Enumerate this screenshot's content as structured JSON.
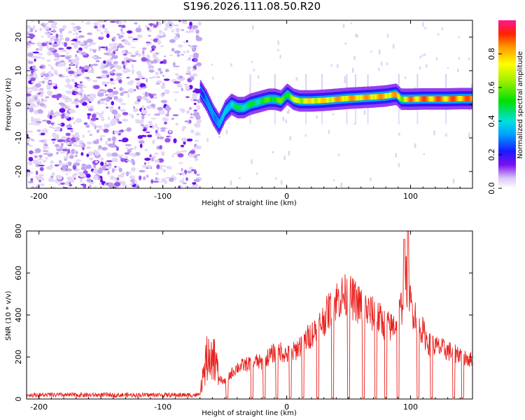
{
  "title": "S196.2026.111.08.50.R20",
  "chart_data": [
    {
      "type": "heatmap",
      "xlabel": "Height of straight line (km)",
      "ylabel": "Frequency (Hz)",
      "xlim": [
        -210,
        150
      ],
      "ylim": [
        -25,
        25
      ],
      "xticks": [
        -200,
        -100,
        0,
        100
      ],
      "yticks": [
        -20,
        -10,
        0,
        10,
        20
      ],
      "colorbar": {
        "label": "Normalized spectral amplitude",
        "range": [
          0,
          1
        ],
        "ticks": [
          "0.0",
          "0.2",
          "0.4",
          "0.6",
          "0.8"
        ],
        "tick_values": [
          0.0,
          0.2,
          0.4,
          0.6,
          0.8
        ]
      },
      "ridge": {
        "x": [
          -70,
          -65,
          -60,
          -55,
          -50,
          -45,
          -40,
          -35,
          -30,
          -25,
          -20,
          -15,
          -10,
          -5,
          0,
          5,
          10,
          20,
          30,
          40,
          50,
          60,
          70,
          80,
          88,
          92,
          100,
          110,
          120,
          130,
          140,
          150
        ],
        "freq": [
          4,
          1,
          -3,
          -6,
          -2,
          0,
          -1,
          -1,
          0,
          0.5,
          1,
          1.5,
          1.5,
          1,
          3,
          1.5,
          1,
          1,
          1.2,
          1.5,
          1.8,
          2,
          2.2,
          2.5,
          3,
          1.5,
          1.5,
          1.6,
          1.6,
          1.6,
          1.7,
          1.7
        ],
        "amplitude": [
          0.2,
          0.3,
          0.35,
          0.35,
          0.4,
          0.45,
          0.5,
          0.5,
          0.5,
          0.5,
          0.55,
          0.6,
          0.6,
          0.6,
          0.6,
          0.7,
          0.75,
          0.8,
          0.8,
          0.85,
          0.85,
          0.85,
          0.85,
          0.85,
          0.85,
          0.7,
          0.9,
          0.9,
          0.9,
          0.9,
          0.9,
          0.9
        ]
      }
    },
    {
      "type": "line",
      "xlabel": "Height of straight line (km)",
      "ylabel": "SNR (10 * v/v)",
      "xlim": [
        -210,
        150
      ],
      "ylim": [
        0,
        800
      ],
      "xticks": [
        -200,
        -100,
        0,
        100
      ],
      "yticks": [
        0,
        200,
        400,
        600,
        800
      ],
      "color": "#e8201c",
      "envelope": {
        "x": [
          -210,
          -160,
          -100,
          -75,
          -70,
          -66,
          -62,
          -58,
          -55,
          -50,
          -45,
          -40,
          -35,
          -30,
          -25,
          -20,
          -15,
          -10,
          -5,
          0,
          5,
          10,
          15,
          20,
          25,
          30,
          35,
          40,
          45,
          50,
          55,
          60,
          65,
          70,
          75,
          80,
          85,
          90,
          93,
          95,
          97,
          100,
          105,
          110,
          115,
          120,
          125,
          130,
          135,
          140,
          145,
          150
        ],
        "y": [
          20,
          20,
          20,
          20,
          40,
          150,
          250,
          200,
          100,
          80,
          120,
          150,
          160,
          170,
          180,
          170,
          200,
          220,
          230,
          210,
          220,
          250,
          280,
          310,
          340,
          380,
          430,
          470,
          490,
          490,
          470,
          440,
          420,
          400,
          380,
          350,
          340,
          380,
          450,
          600,
          560,
          450,
          390,
          320,
          260,
          250,
          240,
          230,
          220,
          215,
          200,
          180
        ]
      },
      "dropouts": [
        -48,
        -28,
        -18,
        -8,
        3,
        13,
        25,
        37,
        50,
        62,
        72,
        80,
        90,
        106,
        117,
        135,
        142
      ],
      "peaks": [
        {
          "x": 95,
          "y": 760
        },
        {
          "x": 98,
          "y": 800
        }
      ]
    }
  ]
}
